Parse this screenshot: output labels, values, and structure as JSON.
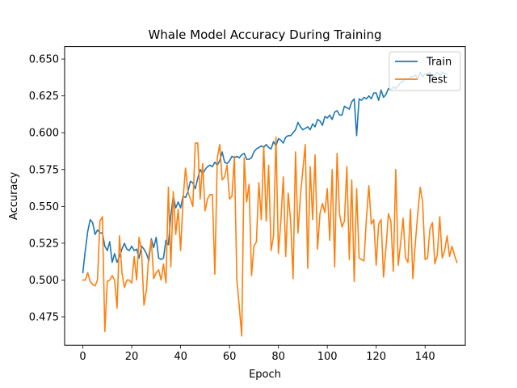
{
  "chart_data": {
    "type": "line",
    "title": "Whale Model Accuracy During Training",
    "xlabel": "Epoch",
    "ylabel": "Accuracy",
    "xlim": [
      -7.45,
      156.45
    ],
    "ylim": [
      0.4557,
      0.6585
    ],
    "xticks": [
      0,
      20,
      40,
      60,
      80,
      100,
      120,
      140
    ],
    "xtick_labels": [
      "0",
      "20",
      "40",
      "60",
      "80",
      "100",
      "120",
      "140"
    ],
    "yticks": [
      0.475,
      0.5,
      0.525,
      0.55,
      0.575,
      0.6,
      0.625,
      0.65
    ],
    "ytick_labels": [
      "0.475",
      "0.500",
      "0.525",
      "0.550",
      "0.575",
      "0.600",
      "0.625",
      "0.650"
    ],
    "grid": false,
    "legend_position": "top-right",
    "colors": {
      "train": "#1f77b4",
      "test": "#ff7f0e"
    },
    "series": [
      {
        "name": "Train",
        "values": [
          0.505,
          0.52,
          0.533,
          0.541,
          0.539,
          0.531,
          0.534,
          0.532,
          0.532,
          0.523,
          0.52,
          0.526,
          0.512,
          0.518,
          0.512,
          0.516,
          0.521,
          0.525,
          0.521,
          0.52,
          0.523,
          0.52,
          0.521,
          0.515,
          0.523,
          0.521,
          0.518,
          0.513,
          0.528,
          0.522,
          0.529,
          0.515,
          0.514,
          0.515,
          0.527,
          0.524,
          0.544,
          0.557,
          0.549,
          0.553,
          0.549,
          0.557,
          0.556,
          0.56,
          0.567,
          0.566,
          0.562,
          0.569,
          0.575,
          0.572,
          0.575,
          0.577,
          0.578,
          0.577,
          0.58,
          0.578,
          0.581,
          0.587,
          0.58,
          0.579,
          0.581,
          0.584,
          0.583,
          0.584,
          0.583,
          0.585,
          0.586,
          0.582,
          0.582,
          0.583,
          0.587,
          0.589,
          0.59,
          0.591,
          0.59,
          0.592,
          0.59,
          0.589,
          0.594,
          0.591,
          0.596,
          0.595,
          0.593,
          0.597,
          0.598,
          0.598,
          0.6,
          0.602,
          0.607,
          0.604,
          0.602,
          0.603,
          0.604,
          0.602,
          0.606,
          0.604,
          0.609,
          0.608,
          0.605,
          0.611,
          0.61,
          0.612,
          0.609,
          0.614,
          0.615,
          0.612,
          0.612,
          0.618,
          0.617,
          0.616,
          0.621,
          0.623,
          0.598,
          0.623,
          0.622,
          0.624,
          0.623,
          0.625,
          0.623,
          0.627,
          0.627,
          0.622,
          0.629,
          0.624,
          0.626,
          0.63,
          0.629,
          0.631,
          0.63,
          0.632,
          0.634,
          0.635,
          0.637,
          0.636,
          0.638,
          0.638,
          0.639,
          0.637,
          0.641,
          0.638,
          0.64,
          0.64,
          0.641,
          0.637,
          0.64,
          0.641,
          0.639,
          0.641,
          0.64,
          0.64
        ]
      },
      {
        "name": "Test",
        "values": [
          0.5,
          0.5,
          0.505,
          0.499,
          0.497,
          0.496,
          0.5,
          0.54,
          0.543,
          0.465,
          0.499,
          0.5,
          0.503,
          0.5,
          0.481,
          0.53,
          0.505,
          0.495,
          0.5,
          0.5,
          0.498,
          0.516,
          0.5,
          0.529,
          0.52,
          0.483,
          0.493,
          0.517,
          0.527,
          0.501,
          0.505,
          0.507,
          0.5,
          0.511,
          0.498,
          0.563,
          0.509,
          0.56,
          0.531,
          0.548,
          0.52,
          0.555,
          0.576,
          0.56,
          0.555,
          0.55,
          0.593,
          0.593,
          0.555,
          0.579,
          0.547,
          0.555,
          0.558,
          0.558,
          0.504,
          0.583,
          0.592,
          0.568,
          0.57,
          0.578,
          0.555,
          0.557,
          0.584,
          0.5,
          0.482,
          0.462,
          0.583,
          0.553,
          0.565,
          0.503,
          0.523,
          0.526,
          0.566,
          0.541,
          0.591,
          0.54,
          0.578,
          0.52,
          0.53,
          0.597,
          0.518,
          0.54,
          0.57,
          0.516,
          0.559,
          0.54,
          0.501,
          0.587,
          0.532,
          0.557,
          0.575,
          0.592,
          0.508,
          0.577,
          0.541,
          0.585,
          0.521,
          0.545,
          0.552,
          0.546,
          0.562,
          0.527,
          0.575,
          0.509,
          0.586,
          0.545,
          0.536,
          0.54,
          0.577,
          0.514,
          0.568,
          0.499,
          0.562,
          0.515,
          0.514,
          0.513,
          0.542,
          0.564,
          0.538,
          0.541,
          0.51,
          0.538,
          0.541,
          0.502,
          0.522,
          0.545,
          0.54,
          0.506,
          0.575,
          0.51,
          0.525,
          0.542,
          0.515,
          0.512,
          0.548,
          0.501,
          0.525,
          0.545,
          0.563,
          0.553,
          0.514,
          0.515,
          0.535,
          0.539,
          0.511,
          0.517,
          0.543,
          0.515,
          0.52,
          0.53,
          0.516,
          0.523,
          0.517,
          0.512
        ]
      }
    ]
  }
}
